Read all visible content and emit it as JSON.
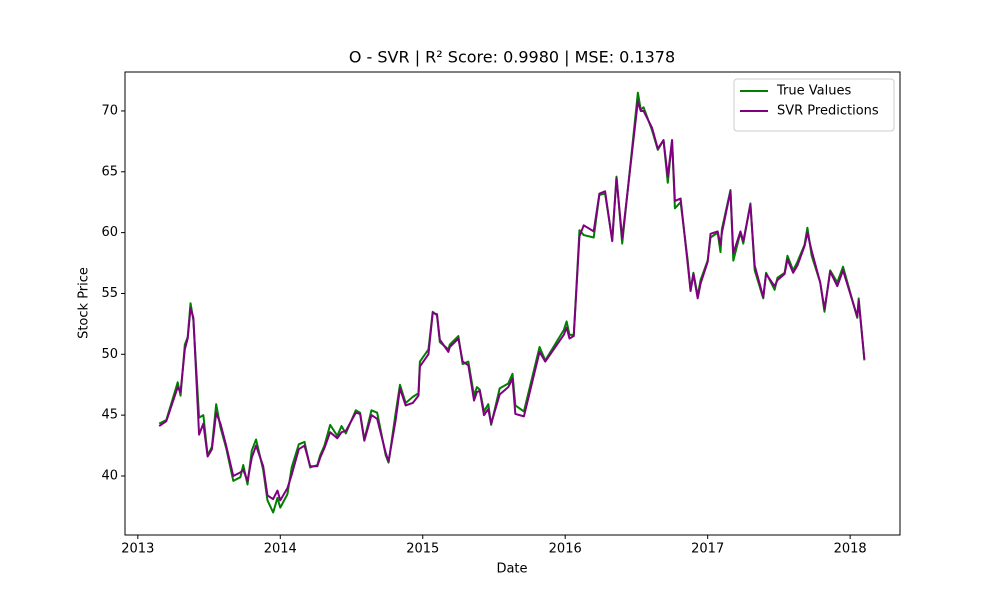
{
  "chart_data": {
    "type": "line",
    "title": "O - SVR | R² Score: 0.9980 | MSE: 0.1378",
    "xlabel": "Date",
    "ylabel": "Stock Price",
    "x": [
      2013.15,
      2013.2,
      2013.28,
      2013.3,
      2013.33,
      2013.35,
      2013.37,
      2013.39,
      2013.43,
      2013.46,
      2013.49,
      2013.52,
      2013.55,
      2013.58,
      2013.62,
      2013.67,
      2013.72,
      2013.74,
      2013.77,
      2013.8,
      2013.83,
      2013.88,
      2013.91,
      2013.95,
      2013.98,
      2014.0,
      2014.05,
      2014.08,
      2014.13,
      2014.17,
      2014.21,
      2014.26,
      2014.28,
      2014.31,
      2014.35,
      2014.4,
      2014.43,
      2014.46,
      2014.53,
      2014.56,
      2014.59,
      2014.64,
      2014.68,
      2014.74,
      2014.76,
      2014.81,
      2014.84,
      2014.88,
      2014.93,
      2014.97,
      2014.98,
      2015.04,
      2015.07,
      2015.1,
      2015.12,
      2015.18,
      2015.19,
      2015.25,
      2015.28,
      2015.32,
      2015.36,
      2015.38,
      2015.4,
      2015.43,
      2015.46,
      2015.48,
      2015.54,
      2015.6,
      2015.63,
      2015.65,
      2015.71,
      2015.82,
      2015.86,
      2015.99,
      2016.01,
      2016.03,
      2016.06,
      2016.08,
      2016.1,
      2016.13,
      2016.2,
      2016.24,
      2016.28,
      2016.33,
      2016.36,
      2016.4,
      2016.51,
      2016.53,
      2016.55,
      2016.61,
      2016.65,
      2016.69,
      2016.72,
      2016.75,
      2016.77,
      2016.81,
      2016.86,
      2016.88,
      2016.9,
      2016.93,
      2016.95,
      2017.0,
      2017.02,
      2017.07,
      2017.09,
      2017.1,
      2017.16,
      2017.18,
      2017.23,
      2017.25,
      2017.3,
      2017.33,
      2017.39,
      2017.41,
      2017.47,
      2017.49,
      2017.54,
      2017.56,
      2017.6,
      2017.63,
      2017.68,
      2017.7,
      2017.73,
      2017.79,
      2017.82,
      2017.86,
      2017.91,
      2017.95,
      2018.05,
      2018.06,
      2018.1
    ],
    "series": [
      {
        "name": "True Values",
        "color": "#008000",
        "values": [
          44.3,
          44.6,
          47.7,
          46.6,
          50.8,
          51.4,
          54.2,
          52.8,
          44.8,
          45.0,
          41.7,
          42.4,
          45.9,
          44.0,
          42.3,
          39.6,
          39.9,
          40.9,
          39.3,
          42.1,
          43.0,
          40.5,
          38.0,
          37.0,
          38.2,
          37.4,
          38.5,
          40.7,
          42.6,
          42.8,
          40.7,
          40.9,
          41.7,
          42.5,
          44.2,
          43.3,
          44.1,
          43.5,
          45.4,
          45.2,
          43.0,
          45.4,
          45.2,
          41.7,
          41.1,
          45.2,
          47.5,
          46.0,
          46.5,
          46.8,
          49.4,
          50.4,
          53.5,
          53.2,
          51.0,
          50.4,
          50.8,
          51.5,
          49.2,
          49.4,
          46.6,
          47.3,
          47.1,
          45.3,
          45.9,
          44.2,
          47.2,
          47.6,
          48.4,
          45.8,
          45.3,
          50.6,
          49.5,
          52.0,
          52.7,
          51.6,
          51.6,
          55.8,
          60.2,
          59.8,
          59.6,
          63.1,
          63.2,
          59.4,
          64.6,
          59.1,
          71.5,
          70.1,
          70.3,
          68.4,
          66.8,
          67.6,
          64.1,
          67.6,
          62.0,
          62.5,
          57.7,
          55.3,
          56.7,
          54.8,
          56.1,
          57.7,
          59.6,
          60.0,
          58.4,
          60.3,
          63.5,
          57.7,
          60.0,
          59.1,
          62.4,
          56.9,
          54.6,
          56.7,
          55.3,
          56.3,
          56.7,
          58.1,
          56.9,
          57.6,
          59.0,
          60.4,
          58.1,
          55.9,
          53.5,
          56.9,
          55.9,
          57.2,
          53.0,
          54.6,
          49.5
        ]
      },
      {
        "name": "SVR Predictions",
        "color": "#800080",
        "values": [
          44.1,
          44.5,
          47.3,
          46.9,
          50.4,
          51.3,
          53.8,
          53.0,
          43.4,
          44.3,
          41.6,
          42.2,
          45.2,
          44.3,
          42.5,
          40.0,
          40.3,
          40.5,
          39.6,
          41.5,
          42.5,
          40.8,
          38.4,
          38.1,
          38.8,
          38.0,
          39.0,
          40.1,
          42.2,
          42.5,
          40.8,
          40.8,
          41.5,
          42.3,
          43.6,
          43.1,
          43.6,
          43.7,
          45.2,
          45.1,
          42.9,
          45.0,
          44.7,
          41.9,
          41.2,
          44.6,
          47.2,
          45.8,
          46.0,
          46.6,
          49.0,
          50.0,
          53.4,
          53.3,
          51.2,
          50.2,
          50.6,
          51.3,
          49.4,
          49.1,
          46.2,
          46.9,
          47.0,
          45.0,
          45.5,
          44.3,
          46.7,
          47.3,
          48.0,
          45.1,
          44.9,
          50.2,
          49.4,
          51.6,
          52.2,
          51.3,
          51.5,
          55.6,
          59.7,
          60.6,
          60.1,
          63.2,
          63.4,
          59.3,
          64.5,
          59.5,
          70.8,
          70.0,
          70.0,
          68.6,
          66.9,
          67.6,
          64.6,
          67.6,
          62.6,
          62.8,
          57.4,
          55.2,
          56.6,
          54.6,
          55.8,
          57.6,
          59.9,
          60.1,
          59.0,
          60.0,
          63.4,
          58.3,
          60.1,
          59.3,
          62.3,
          57.3,
          54.7,
          56.6,
          55.6,
          56.1,
          56.6,
          57.8,
          56.7,
          57.3,
          58.9,
          60.0,
          58.5,
          55.9,
          53.7,
          56.8,
          55.6,
          56.9,
          53.1,
          54.4,
          49.6
        ]
      }
    ],
    "xlim": [
      2012.91,
      2018.35
    ],
    "xticks": [
      2013,
      2014,
      2015,
      2016,
      2017,
      2018
    ],
    "ylim": [
      35.15,
      73.2
    ],
    "yticks": [
      40,
      45,
      50,
      55,
      60,
      65,
      70
    ],
    "grid": false,
    "legend": "upper right"
  }
}
